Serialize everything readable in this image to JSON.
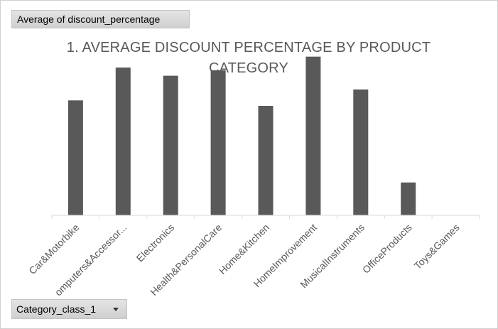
{
  "pivot": {
    "value_field_label": "Average of discount_percentage",
    "axis_field_label": "Category_class_1"
  },
  "colors": {
    "bar": "#595959",
    "axis": "#d9d9d9",
    "text": "#595959"
  },
  "icons": {
    "filter_dropdown": "chevron-down-icon"
  },
  "chart_data": {
    "type": "bar",
    "title": "1. AVERAGE DISCOUNT PERCENTAGE BY PRODUCT CATEGORY",
    "xlabel": "",
    "ylabel": "",
    "grid": false,
    "legend": "none",
    "ylim": [
      0,
      0.6
    ],
    "categories": [
      "Car&Motorbike",
      "Computers&Accessories",
      "Electronics",
      "Health&PersonalCare",
      "Home&Kitchen",
      "HomeImprovement",
      "MusicalInstruments",
      "OfficeProducts",
      "Toys&Games"
    ],
    "tick_labels": [
      "Car&Motorbike",
      "omputers&Accessor...",
      "Electronics",
      "Health&PersonalCare",
      "Home&Kitchen",
      "HomeImprovement",
      "MusicalInstruments",
      "OfficeProducts",
      "Toys&Games"
    ],
    "values": [
      0.42,
      0.54,
      0.51,
      0.53,
      0.4,
      0.58,
      0.46,
      0.12,
      0.0
    ]
  }
}
